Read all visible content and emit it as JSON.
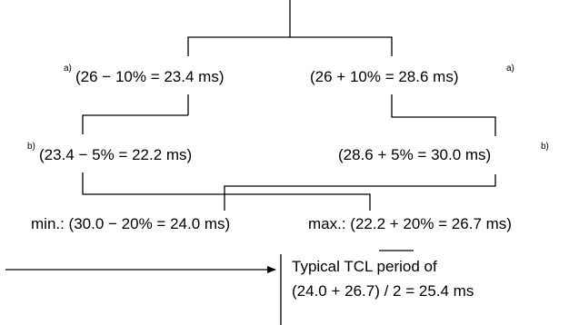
{
  "labels": {
    "a_note": "a)",
    "b_note": "b)",
    "minus_10": "(26 − 10% = 23.4 ms)",
    "plus_10": "(26 + 10% = 28.6 ms)",
    "minus_5": "(23.4 − 5% = 22.2 ms)",
    "plus_5": "(28.6 + 5% = 30.0 ms)",
    "min_label": "min.: (30.0 − 20% = 24.0 ms)",
    "max_label": "max.: (22.2 + 20% = 26.7 ms)",
    "result_line1_pre": "Typical ",
    "result_line1_tcl": "TCL",
    "result_line1_post": " period of",
    "result_line2": "(24.0 + 26.7) / 2 = 25.4 ms"
  },
  "colors": {
    "line": "#000000",
    "text": "#000000",
    "background": "#ffffff"
  }
}
